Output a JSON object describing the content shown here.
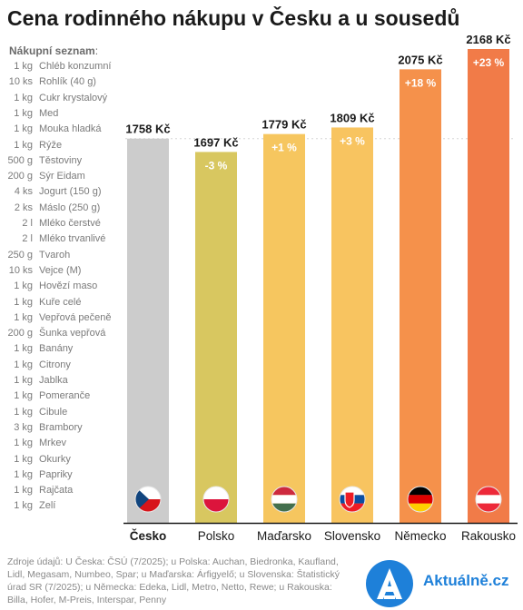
{
  "title": "Cena rodinného nákupu v Česku a u sousedů",
  "list": {
    "header": "Nákupní seznam",
    "items": [
      {
        "qty": "1 kg",
        "name": "Chléb konzumní"
      },
      {
        "qty": "10 ks",
        "name": "Rohlík (40 g)"
      },
      {
        "qty": "1 kg",
        "name": "Cukr krystalový"
      },
      {
        "qty": "1 kg",
        "name": "Med"
      },
      {
        "qty": "1 kg",
        "name": "Mouka hladká"
      },
      {
        "qty": "1 kg",
        "name": "Rýže"
      },
      {
        "qty": "500 g",
        "name": "Těstoviny"
      },
      {
        "qty": "200 g",
        "name": "Sýr Eidam"
      },
      {
        "qty": "4 ks",
        "name": "Jogurt (150 g)"
      },
      {
        "qty": "2 ks",
        "name": "Máslo (250 g)"
      },
      {
        "qty": "2 l",
        "name": "Mléko čerstvé"
      },
      {
        "qty": "2 l",
        "name": "Mléko trvanlivé"
      },
      {
        "qty": "250 g",
        "name": "Tvaroh"
      },
      {
        "qty": "10 ks",
        "name": "Vejce (M)"
      },
      {
        "qty": "1 kg",
        "name": "Hovězí maso"
      },
      {
        "qty": "1 kg",
        "name": "Kuře celé"
      },
      {
        "qty": "1 kg",
        "name": "Vepřová pečeně"
      },
      {
        "qty": "200 g",
        "name": "Šunka vepřová"
      },
      {
        "qty": "1 kg",
        "name": "Banány"
      },
      {
        "qty": "1 kg",
        "name": "Citrony"
      },
      {
        "qty": "1 kg",
        "name": "Jablka"
      },
      {
        "qty": "1 kg",
        "name": "Pomeranče"
      },
      {
        "qty": "1 kg",
        "name": "Cibule"
      },
      {
        "qty": "3 kg",
        "name": "Brambory"
      },
      {
        "qty": "1 kg",
        "name": "Mrkev"
      },
      {
        "qty": "1 kg",
        "name": "Okurky"
      },
      {
        "qty": "1 kg",
        "name": "Papriky"
      },
      {
        "qty": "1 kg",
        "name": "Rajčata"
      },
      {
        "qty": "1 kg",
        "name": "Zelí"
      }
    ]
  },
  "chart_data": {
    "type": "bar",
    "title": "Cena rodinného nákupu v Česku a u sousedů",
    "categories": [
      "Česko",
      "Polsko",
      "Maďarsko",
      "Slovensko",
      "Německo",
      "Rakousko"
    ],
    "values": [
      1758,
      1697,
      1779,
      1809,
      2075,
      2168
    ],
    "value_labels": [
      "1758 Kč",
      "1697 Kč",
      "1779 Kč",
      "1809 Kč",
      "2075 Kč",
      "2168 Kč"
    ],
    "diff_labels": [
      "",
      "-3 %",
      "+1 %",
      "+3 %",
      "+18 %",
      "+23 %"
    ],
    "colors": [
      "#cccccc",
      "#d8c760",
      "#f6c65f",
      "#f8c460",
      "#f5914b",
      "#f17b48"
    ],
    "flags": [
      "cz-flag-icon",
      "pl-flag-icon",
      "hu-flag-icon",
      "sk-flag-icon",
      "de-flag-icon",
      "at-flag-icon"
    ],
    "reference_line": 1758,
    "ylim": [
      0,
      2168
    ],
    "xlabel": "",
    "ylabel": "",
    "grid": false,
    "highlight_category": "Česko"
  },
  "footer": {
    "source": "Zdroje údajů: U Česka: ČSÚ (7/2025); u Polska: Auchan, Biedronka, Kaufland, Lidl, Megasam, Numbeo, Spar; u Maďarska: Árfigyelő; u Slovenska: Štatistický úrad SR (7/2025); u Německa: Edeka, Lidl, Metro, Netto, Rewe; u Rakouska: Billa, Hofer, M-Preis, Interspar, Penny",
    "brand": "Aktuálně.cz",
    "brand_color": "#1e80d9"
  }
}
